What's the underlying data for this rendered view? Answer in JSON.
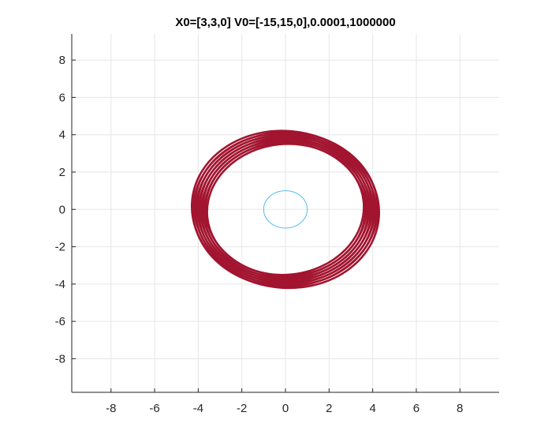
{
  "chart_data": {
    "type": "line",
    "title": "X0=[3,3,0] V0=[-15,15,0],0.0001,1000000",
    "xlabel": "",
    "ylabel": "",
    "xlim": [
      -9.8,
      9.8
    ],
    "ylim": [
      -9.8,
      9.4
    ],
    "xticks": [
      -8,
      -6,
      -4,
      -2,
      0,
      2,
      4,
      6,
      8
    ],
    "yticks": [
      -8,
      -6,
      -4,
      -2,
      0,
      2,
      4,
      6,
      8
    ],
    "grid": true,
    "legend": "none",
    "series": [
      {
        "color": "#a2142f",
        "shape": "orbit-band",
        "center": [
          0,
          0
        ],
        "x_semi_axis_range": [
          3.6,
          4.3
        ],
        "y_semi_axis_range": [
          3.5,
          4.2
        ],
        "ring_count": 12
      },
      {
        "color": "#4dbeee",
        "shape": "circle",
        "center": [
          0,
          0
        ],
        "radius": 1.0
      }
    ]
  }
}
